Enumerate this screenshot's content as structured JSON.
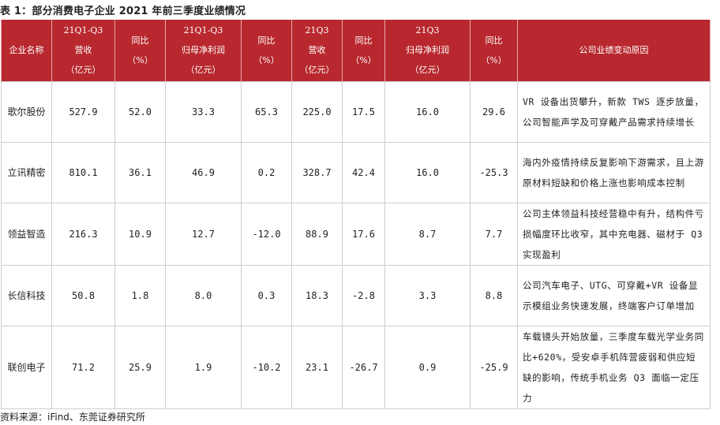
{
  "caption": "表 1：部分消费电子企业 2021 年前三季度业绩情况",
  "source": "资料来源：iFind、东莞证券研究所",
  "headers": [
    [
      "企业名称"
    ],
    [
      "21Q1-Q3",
      "营收",
      "（亿元）"
    ],
    [
      "同比",
      "（%）"
    ],
    [
      "21Q1-Q3",
      "归母净利润",
      "（亿元）"
    ],
    [
      "同比",
      "（%）"
    ],
    [
      "21Q3",
      "营收",
      "（亿元）"
    ],
    [
      "同比",
      "（%）"
    ],
    [
      "21Q3",
      "归母净利润",
      "（亿元）"
    ],
    [
      "同比",
      "（%）"
    ],
    [
      "公司业绩变动原因"
    ]
  ],
  "rows": [
    {
      "name": "歌尔股份",
      "values": [
        "527.9",
        "52.0",
        "33.3",
        "65.3",
        "225.0",
        "17.5",
        "16.0",
        "29.6"
      ],
      "reason": "VR 设备出货攀升，新款 TWS 逐步放量，公司智能声学及可穿戴产品需求持续增长"
    },
    {
      "name": "立讯精密",
      "values": [
        "810.1",
        "36.1",
        "46.9",
        "0.2",
        "328.7",
        "42.4",
        "16.0",
        "-25.3"
      ],
      "reason": "海内外疫情持续反复影响下游需求，且上游原材料短缺和价格上涨也影响成本控制"
    },
    {
      "name": "领益智造",
      "values": [
        "216.3",
        "10.9",
        "12.7",
        "-12.0",
        "88.9",
        "17.6",
        "8.7",
        "7.7"
      ],
      "reason": "公司主体领益科技经营稳中有升，结构件亏损幅度环比收窄，其中充电器、磁材于 Q3 实现盈利"
    },
    {
      "name": "长信科技",
      "values": [
        "50.8",
        "1.8",
        "8.0",
        "0.3",
        "18.3",
        "-2.8",
        "3.3",
        "8.8"
      ],
      "reason": "公司汽车电子、UTG、可穿戴+VR 设备显示模组业务快速发展，终端客户订单增加"
    },
    {
      "name": "联创电子",
      "values": [
        "71.2",
        "25.9",
        "1.9",
        "-10.2",
        "23.1",
        "-26.7",
        "0.9",
        "-25.9"
      ],
      "reason": "车载镜头开始放量，三季度车载光学业务同比+620%，受安卓手机阵营疲弱和供应短缺的影响，传统手机业务 Q3 面临一定压力"
    }
  ]
}
